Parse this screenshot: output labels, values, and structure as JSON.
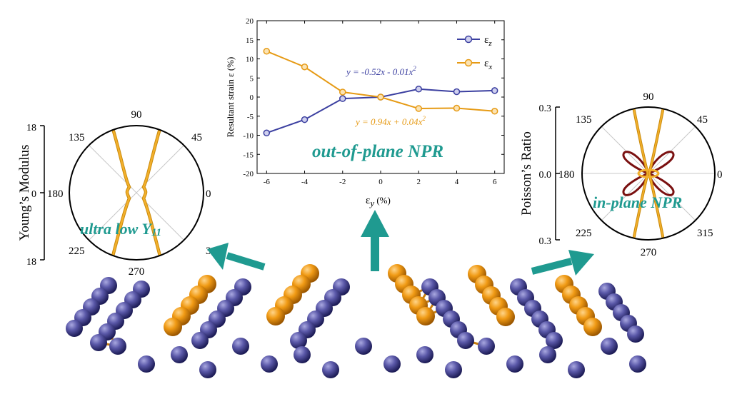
{
  "colors": {
    "blue": "#3b3fa0",
    "orange": "#e69a14",
    "teal": "#1f9a90",
    "darkred": "#7a1010",
    "atom_blue": "#5a58a8",
    "atom_orange": "#f09a14"
  },
  "labels": {
    "left_title": "ultra low Y",
    "left_title_sub": "11",
    "center_title": "out-of-plane NPR",
    "right_title": "in-plane NPR"
  },
  "chart_data": [
    {
      "type": "line",
      "xlabel_main": "ε",
      "xlabel_sub": "y",
      "xlabel_unit": " (%)",
      "ylabel": "Resultant strain ε (%)",
      "xlim": [
        -6.5,
        6.5
      ],
      "ylim": [
        -20,
        20
      ],
      "xticks": [
        "-6",
        "-4",
        "-2",
        "0",
        "2",
        "4",
        "6"
      ],
      "yticks": [
        "-20",
        "-15",
        "-10",
        "-5",
        "0",
        "5",
        "10",
        "15",
        "20"
      ],
      "x": [
        -6,
        -4,
        -2,
        0,
        2,
        4,
        6
      ],
      "series": [
        {
          "name": "ε",
          "name_sub": "z",
          "values": [
            -9.4,
            -5.9,
            -0.4,
            0.0,
            2.1,
            1.4,
            1.7
          ]
        },
        {
          "name": "ε",
          "name_sub": "x",
          "values": [
            12.0,
            7.9,
            1.3,
            0.0,
            -3.0,
            -2.9,
            -3.7
          ]
        }
      ],
      "annotations": [
        {
          "text": "y = -0.52x - 0.01x",
          "sup": "2",
          "series": 0
        },
        {
          "text": "y = 0.94x + 0.04x",
          "sup": "2",
          "series": 1
        }
      ]
    },
    {
      "type": "polar",
      "ylabel": "Young’s Modulus",
      "radial_ticks": [
        "18",
        "0",
        "18"
      ],
      "angle_labels": [
        "90",
        "45",
        "0",
        "315",
        "270",
        "225",
        "180",
        "135"
      ]
    },
    {
      "type": "polar",
      "ylabel": "Poisson’s Ratio",
      "radial_ticks": [
        "0.3",
        "0.0",
        "0.3"
      ],
      "angle_labels": [
        "90",
        "45",
        "0",
        "315",
        "270",
        "225",
        "180",
        "135"
      ]
    }
  ]
}
